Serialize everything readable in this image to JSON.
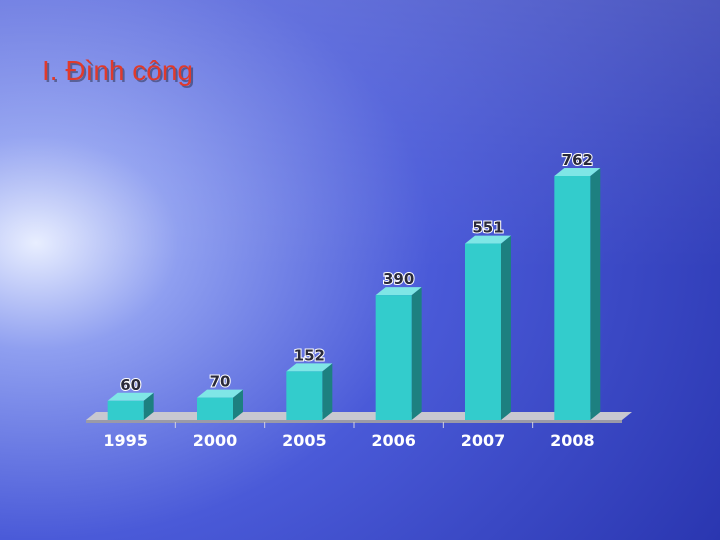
{
  "chart_data": {
    "type": "bar3d",
    "title": "I. Đình công",
    "categories": [
      "1995",
      "2000",
      "2005",
      "2006",
      "2007",
      "2008"
    ],
    "values": [
      60,
      70,
      152,
      390,
      551,
      762
    ],
    "color": "#33cccc"
  }
}
